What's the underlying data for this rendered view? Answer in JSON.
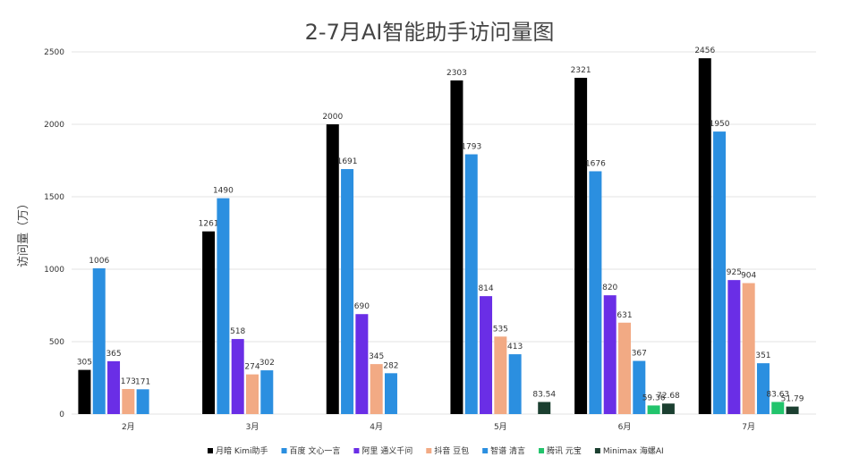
{
  "chart_data": {
    "type": "bar",
    "title": "2-7月AI智能助手访问量图",
    "xlabel": "",
    "ylabel": "访问量（万）",
    "ylim": [
      0,
      2500
    ],
    "yticks": [
      0,
      500,
      1000,
      1500,
      2000,
      2500
    ],
    "grid": true,
    "legend_position": "bottom",
    "categories": [
      "2月",
      "3月",
      "4月",
      "5月",
      "6月",
      "7月"
    ],
    "series": [
      {
        "name": "月暗 Kimi助手",
        "color": "#000000",
        "values": [
          305,
          1261,
          2000,
          2303,
          2321,
          2456
        ]
      },
      {
        "name": "百度 文心一言",
        "color": "#2b8fe0",
        "values": [
          1006,
          1490,
          1691,
          1793,
          1676,
          1950
        ]
      },
      {
        "name": "阿里 通义千问",
        "color": "#6a2ee6",
        "values": [
          365,
          518,
          690,
          814,
          820,
          925
        ]
      },
      {
        "name": "抖音 豆包",
        "color": "#f2aa84",
        "values": [
          173,
          274,
          345,
          535,
          631,
          904
        ]
      },
      {
        "name": "智谱 清言",
        "color": "#2b8fe0",
        "values": [
          171,
          302,
          282,
          413,
          367,
          351
        ]
      },
      {
        "name": "腾讯 元宝",
        "color": "#22c46c",
        "values": [
          null,
          null,
          null,
          null,
          59.36,
          83.63
        ]
      },
      {
        "name": "Minimax 海螺AI",
        "color": "#1b3f30",
        "values": [
          null,
          null,
          null,
          83.54,
          72.68,
          51.79
        ]
      }
    ]
  }
}
